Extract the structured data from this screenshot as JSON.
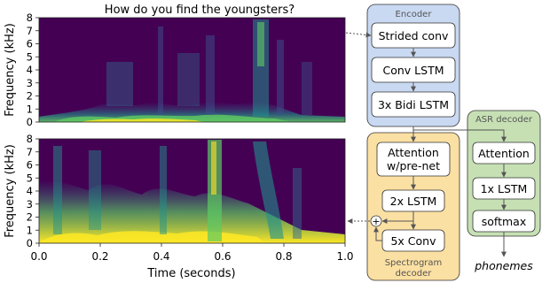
{
  "figure": {
    "title": "How do you find the youngsters?",
    "ylabel": "Frequency (kHz)",
    "xlabel": "Time (seconds)",
    "yticks": [
      "0",
      "1",
      "2",
      "3",
      "4",
      "5",
      "6",
      "7",
      "8"
    ],
    "xticks": [
      "0.0",
      "0.2",
      "0.4",
      "0.6",
      "0.8",
      "1.0"
    ]
  },
  "encoder": {
    "title": "Encoder",
    "blocks": [
      "Strided conv",
      "Conv LSTM",
      "3x Bidi LSTM"
    ],
    "color": "#c9d9f2"
  },
  "spectrogram_decoder": {
    "title_line1": "Spectrogram",
    "title_line2": "decoder",
    "attention_line1": "Attention",
    "attention_line2": "w/pre-net",
    "lstm": "2x LSTM",
    "conv": "5x Conv",
    "sum_symbol": "+",
    "color": "#fbe0a3"
  },
  "asr_decoder": {
    "title": "ASR decoder",
    "blocks": [
      "Attention",
      "1x LSTM",
      "softmax"
    ],
    "output": "phonemes",
    "color": "#c6e0b4"
  },
  "spectrogram_colors": {
    "background": "#440154",
    "low": "#3b528b",
    "mid": "#21918c",
    "high": "#5ec962",
    "peak": "#fde725"
  }
}
